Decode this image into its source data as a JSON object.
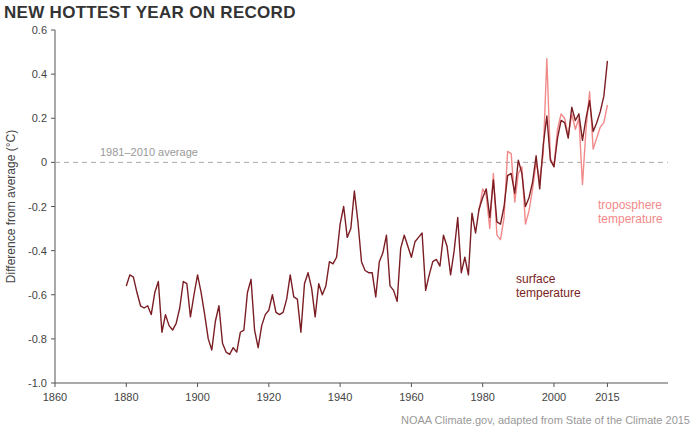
{
  "chart_data": {
    "type": "line",
    "title": "NEW HOTTEST YEAR ON RECORD",
    "y_label": "Difference from average (°C)",
    "source": "NOAA Climate.gov, adapted from State of the Climate 2015",
    "reference_line": {
      "value": 0,
      "label": "1981–2010 average"
    },
    "xlim": [
      1860,
      2032
    ],
    "xticks": [
      1860,
      1880,
      1900,
      1920,
      1940,
      1960,
      1980,
      2000,
      2015
    ],
    "ylim": [
      -1.0,
      0.6
    ],
    "yticks": [
      0.6,
      0.4,
      0.2,
      0,
      -0.2,
      -0.4,
      -0.6,
      -0.8,
      {
        "value": -1.0,
        "label": "-1.0"
      }
    ],
    "grid": false,
    "x": [
      1880,
      1881,
      1882,
      1883,
      1884,
      1885,
      1886,
      1887,
      1888,
      1889,
      1890,
      1891,
      1892,
      1893,
      1894,
      1895,
      1896,
      1897,
      1898,
      1899,
      1900,
      1901,
      1902,
      1903,
      1904,
      1905,
      1906,
      1907,
      1908,
      1909,
      1910,
      1911,
      1912,
      1913,
      1914,
      1915,
      1916,
      1917,
      1918,
      1919,
      1920,
      1921,
      1922,
      1923,
      1924,
      1925,
      1926,
      1927,
      1928,
      1929,
      1930,
      1931,
      1932,
      1933,
      1934,
      1935,
      1936,
      1937,
      1938,
      1939,
      1940,
      1941,
      1942,
      1943,
      1944,
      1945,
      1946,
      1947,
      1948,
      1949,
      1950,
      1951,
      1952,
      1953,
      1954,
      1955,
      1956,
      1957,
      1958,
      1959,
      1960,
      1961,
      1962,
      1963,
      1964,
      1965,
      1966,
      1967,
      1968,
      1969,
      1970,
      1971,
      1972,
      1973,
      1974,
      1975,
      1976,
      1977,
      1978,
      1979,
      1980,
      1981,
      1982,
      1983,
      1984,
      1985,
      1986,
      1987,
      1988,
      1989,
      1990,
      1991,
      1992,
      1993,
      1994,
      1995,
      1996,
      1997,
      1998,
      1999,
      2000,
      2001,
      2002,
      2003,
      2004,
      2005,
      2006,
      2007,
      2008,
      2009,
      2010,
      2011,
      2012,
      2013,
      2014,
      2015
    ],
    "series": [
      {
        "name": "surface temperature",
        "color": "#7b1e24",
        "values": [
          -0.56,
          -0.51,
          -0.52,
          -0.59,
          -0.65,
          -0.66,
          -0.65,
          -0.69,
          -0.59,
          -0.54,
          -0.77,
          -0.69,
          -0.74,
          -0.76,
          -0.73,
          -0.66,
          -0.54,
          -0.55,
          -0.7,
          -0.6,
          -0.51,
          -0.59,
          -0.69,
          -0.8,
          -0.85,
          -0.72,
          -0.65,
          -0.82,
          -0.86,
          -0.87,
          -0.84,
          -0.86,
          -0.77,
          -0.76,
          -0.59,
          -0.53,
          -0.76,
          -0.84,
          -0.74,
          -0.69,
          -0.67,
          -0.6,
          -0.68,
          -0.69,
          -0.68,
          -0.62,
          -0.51,
          -0.61,
          -0.62,
          -0.77,
          -0.55,
          -0.5,
          -0.57,
          -0.7,
          -0.55,
          -0.6,
          -0.56,
          -0.45,
          -0.46,
          -0.43,
          -0.28,
          -0.2,
          -0.34,
          -0.3,
          -0.13,
          -0.27,
          -0.45,
          -0.49,
          -0.5,
          -0.5,
          -0.61,
          -0.45,
          -0.41,
          -0.33,
          -0.56,
          -0.58,
          -0.63,
          -0.39,
          -0.33,
          -0.38,
          -0.43,
          -0.36,
          -0.34,
          -0.32,
          -0.58,
          -0.51,
          -0.45,
          -0.44,
          -0.47,
          -0.33,
          -0.38,
          -0.51,
          -0.4,
          -0.25,
          -0.5,
          -0.43,
          -0.51,
          -0.23,
          -0.32,
          -0.21,
          -0.16,
          -0.12,
          -0.25,
          -0.08,
          -0.27,
          -0.28,
          -0.2,
          -0.06,
          -0.05,
          -0.14,
          0.01,
          -0.05,
          -0.2,
          -0.16,
          -0.09,
          0.03,
          -0.12,
          0.08,
          0.21,
          0.01,
          -0.02,
          0.11,
          0.19,
          0.18,
          0.11,
          0.25,
          0.19,
          0.22,
          0.1,
          0.2,
          0.28,
          0.14,
          0.18,
          0.23,
          0.3,
          0.46
        ]
      },
      {
        "name": "troposphere temperature",
        "color": "#f28a8a",
        "values": [
          null,
          null,
          null,
          null,
          null,
          null,
          null,
          null,
          null,
          null,
          null,
          null,
          null,
          null,
          null,
          null,
          null,
          null,
          null,
          null,
          null,
          null,
          null,
          null,
          null,
          null,
          null,
          null,
          null,
          null,
          null,
          null,
          null,
          null,
          null,
          null,
          null,
          null,
          null,
          null,
          null,
          null,
          null,
          null,
          null,
          null,
          null,
          null,
          null,
          null,
          null,
          null,
          null,
          null,
          null,
          null,
          null,
          null,
          null,
          null,
          null,
          null,
          null,
          null,
          null,
          null,
          null,
          null,
          null,
          null,
          null,
          null,
          null,
          null,
          null,
          null,
          null,
          null,
          null,
          null,
          null,
          null,
          null,
          null,
          null,
          null,
          null,
          null,
          null,
          null,
          null,
          null,
          null,
          null,
          null,
          null,
          null,
          null,
          null,
          -0.22,
          -0.12,
          -0.15,
          -0.3,
          -0.05,
          -0.33,
          -0.35,
          -0.25,
          0.05,
          0.04,
          -0.18,
          -0.05,
          -0.02,
          -0.28,
          -0.22,
          -0.12,
          0.0,
          -0.08,
          0.04,
          0.47,
          0.02,
          -0.02,
          0.15,
          0.22,
          0.2,
          0.12,
          0.22,
          0.15,
          0.2,
          -0.1,
          0.15,
          0.32,
          0.06,
          0.11,
          0.16,
          0.18,
          0.26
        ]
      }
    ]
  }
}
